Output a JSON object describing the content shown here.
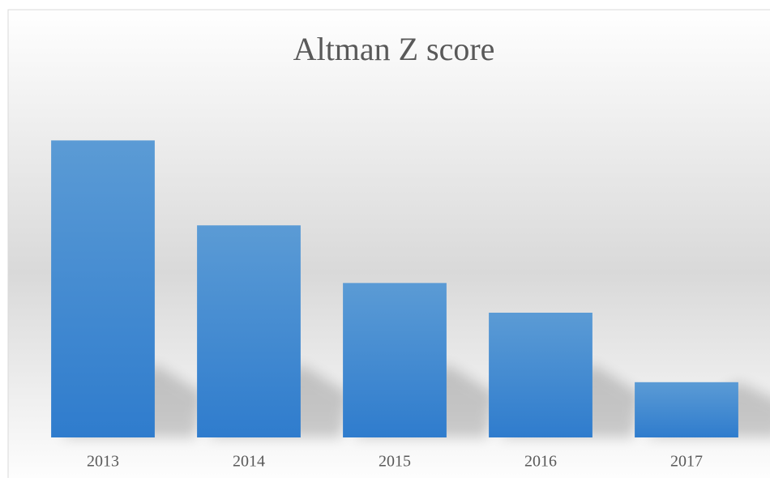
{
  "chart_data": {
    "type": "bar",
    "title": "Altman Z score",
    "categories": [
      "2013",
      "2014",
      "2015",
      "2016",
      "2017"
    ],
    "values": [
      5.0,
      3.57,
      2.6,
      2.1,
      0.93
    ],
    "color": "#4a8fd6",
    "ylim": [
      0,
      6
    ]
  }
}
